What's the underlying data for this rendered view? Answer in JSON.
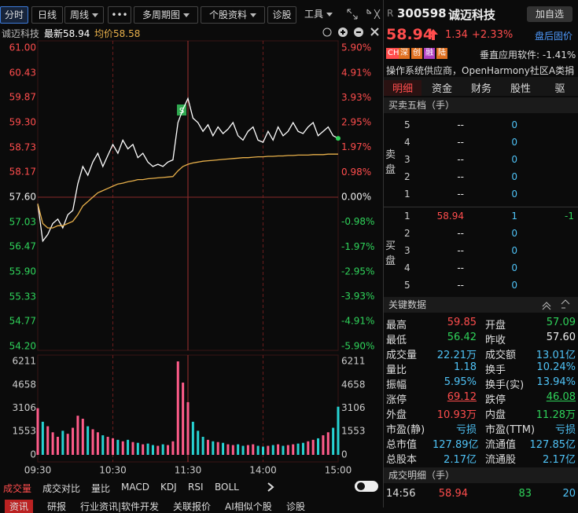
{
  "toolbar": {
    "buttons": [
      "分时",
      "日线",
      "周线",
      "•••",
      "多周期图",
      "个股资料",
      "诊股",
      "工具"
    ]
  },
  "stock_bar": {
    "name": "诚迈科技",
    "latest": "最新58.94",
    "avg": "均价58.58"
  },
  "chart_data": [
    {
      "type": "line",
      "x": [
        0,
        4,
        8,
        12,
        16,
        20,
        24,
        28,
        32,
        36,
        40,
        44,
        48,
        52,
        56,
        60,
        64,
        68,
        72,
        76,
        80,
        84,
        88,
        92,
        96,
        100,
        104,
        108,
        112,
        116,
        120,
        124,
        128,
        132,
        136,
        140,
        144,
        148,
        152,
        156,
        160,
        164,
        168,
        172,
        176,
        180,
        184,
        188,
        192,
        196,
        200,
        204,
        208,
        212,
        216,
        220,
        224,
        228,
        232,
        236,
        240
      ],
      "series": [
        {
          "color": "#ffffff",
          "values": [
            57.45,
            56.6,
            56.75,
            57.0,
            57.1,
            56.9,
            57.2,
            57.3,
            57.9,
            58.3,
            58.1,
            58.4,
            58.6,
            58.3,
            58.55,
            58.8,
            58.6,
            58.9,
            58.7,
            58.8,
            58.5,
            58.6,
            58.4,
            58.3,
            58.35,
            58.3,
            58.4,
            58.45,
            59.3,
            59.6,
            59.85,
            59.4,
            59.3,
            59.1,
            59.25,
            59.0,
            59.2,
            59.05,
            59.15,
            59.3,
            59.0,
            58.9,
            59.1,
            59.2,
            58.9,
            58.85,
            59.1,
            58.9,
            59.2,
            59.0,
            59.1,
            59.3,
            59.1,
            59.05,
            59.2,
            59.3,
            59.0,
            59.1,
            59.2,
            59.0,
            58.94
          ]
        },
        {
          "color": "#e8b04a",
          "values": [
            57.45,
            57.0,
            56.9,
            56.9,
            56.95,
            56.95,
            57.0,
            57.05,
            57.2,
            57.4,
            57.5,
            57.6,
            57.7,
            57.75,
            57.8,
            57.85,
            57.9,
            57.92,
            57.95,
            57.97,
            58.0,
            58.0,
            58.02,
            58.03,
            58.04,
            58.05,
            58.06,
            58.07,
            58.2,
            58.3,
            58.35,
            58.38,
            58.4,
            58.42,
            58.43,
            58.44,
            58.45,
            58.46,
            58.47,
            58.48,
            58.49,
            58.5,
            58.5,
            58.51,
            58.52,
            58.52,
            58.53,
            58.53,
            58.54,
            58.54,
            58.55,
            58.55,
            58.56,
            58.56,
            58.56,
            58.57,
            58.57,
            58.57,
            58.58,
            58.58,
            58.58
          ]
        }
      ],
      "xlim": [
        0,
        240
      ],
      "xticks": [
        {
          "value": 0,
          "label": "09:30"
        },
        {
          "value": 60,
          "label": "10:30"
        },
        {
          "value": 120,
          "label": "11:30"
        },
        {
          "value": 180,
          "label": "14:00"
        },
        {
          "value": 240,
          "label": "15:00"
        }
      ],
      "ylim": [
        54.2,
        61.0
      ],
      "yticks": [
        {
          "value": 61.0,
          "label": "61.00"
        },
        {
          "value": 60.43,
          "label": "60.43"
        },
        {
          "value": 59.87,
          "label": "59.87"
        },
        {
          "value": 59.3,
          "label": "59.30"
        },
        {
          "value": 58.73,
          "label": "58.73"
        },
        {
          "value": 58.17,
          "label": "58.17"
        },
        {
          "value": 57.6,
          "label": "57.60"
        },
        {
          "value": 57.03,
          "label": "57.03"
        },
        {
          "value": 56.47,
          "label": "56.47"
        },
        {
          "value": 55.9,
          "label": "55.90"
        },
        {
          "value": 55.33,
          "label": "55.33"
        },
        {
          "value": 54.77,
          "label": "54.77"
        },
        {
          "value": 54.2,
          "label": "54.20"
        }
      ],
      "y2lim": [
        -5.9,
        5.9
      ],
      "y2ticks": [
        {
          "value": 5.9,
          "label": "5.90%"
        },
        {
          "value": 4.91,
          "label": "4.91%"
        },
        {
          "value": 3.93,
          "label": "3.93%"
        },
        {
          "value": 2.95,
          "label": "2.95%"
        },
        {
          "value": 1.97,
          "label": "1.97%"
        },
        {
          "value": 0.98,
          "label": "0.98%"
        },
        {
          "value": 0,
          "label": "0.00%"
        },
        {
          "value": -0.98,
          "label": "-0.98%"
        },
        {
          "value": -1.97,
          "label": "-1.97%"
        },
        {
          "value": -2.95,
          "label": "-2.95%"
        },
        {
          "value": -3.93,
          "label": "-3.93%"
        },
        {
          "value": -4.91,
          "label": "-4.91%"
        },
        {
          "value": -5.9,
          "label": "-5.90%"
        }
      ],
      "annotations": [
        "S"
      ]
    },
    {
      "type": "bar",
      "up_color": "#ff5c8a",
      "down_color": "#27d3d3",
      "x": [
        0,
        4,
        8,
        12,
        16,
        20,
        24,
        28,
        32,
        36,
        40,
        44,
        48,
        52,
        56,
        60,
        64,
        68,
        72,
        76,
        80,
        84,
        88,
        92,
        96,
        100,
        104,
        108,
        112,
        116,
        120,
        124,
        128,
        132,
        136,
        140,
        144,
        148,
        152,
        156,
        160,
        164,
        168,
        172,
        176,
        180,
        184,
        188,
        192,
        196,
        200,
        204,
        208,
        212,
        216,
        220,
        224,
        228,
        232,
        236,
        240
      ],
      "values": [
        3100,
        2200,
        1900,
        1500,
        1200,
        1600,
        1400,
        1800,
        2600,
        2400,
        1900,
        1700,
        1500,
        1300,
        1200,
        1100,
        1000,
        900,
        1000,
        850,
        800,
        700,
        750,
        650,
        600,
        700,
        650,
        900,
        6211,
        4800,
        3500,
        2200,
        1600,
        1200,
        1000,
        900,
        850,
        800,
        700,
        650,
        700,
        600,
        650,
        700,
        600,
        550,
        600,
        650,
        700,
        600,
        650,
        700,
        750,
        800,
        900,
        1000,
        1100,
        1300,
        1500,
        1800,
        3200
      ],
      "ylim": [
        0,
        6211
      ],
      "yticks": [
        6211,
        4658,
        3106,
        1553,
        0
      ]
    }
  ],
  "indicator_tabs": [
    "成交量",
    "成交对比",
    "量比",
    "MACD",
    "KDJ",
    "RSI",
    "BOLL"
  ],
  "news_tabs": [
    "资讯",
    "研报",
    "行业资讯|软件开发",
    "关联报价",
    "AI相似个股",
    "诊股"
  ],
  "quote": {
    "r": "R",
    "code": "300598",
    "name": "诚迈科技",
    "add": "加自选",
    "price": "58.94",
    "change": "1.34",
    "pct": "+2.33%",
    "after": "盘后固价",
    "badges": [
      "CHM",
      "深",
      "创",
      "融",
      "陆"
    ],
    "sector": "垂直应用软件: -1.41%",
    "concept": "操作系统供应商，OpenHarmony社区A类捐..."
  },
  "tabs": [
    "明细",
    "资金",
    "财务",
    "股性",
    "驱"
  ],
  "order_book": {
    "title": "买卖五档（手）",
    "sell_label": "卖盘",
    "buy_label": "买盘",
    "sell": [
      [
        "5",
        "--",
        "0"
      ],
      [
        "4",
        "--",
        "0"
      ],
      [
        "3",
        "--",
        "0"
      ],
      [
        "2",
        "--",
        "0"
      ],
      [
        "1",
        "--",
        "0"
      ]
    ],
    "buy": [
      [
        "1",
        "58.94",
        "1",
        "-1"
      ],
      [
        "2",
        "--",
        "0"
      ],
      [
        "3",
        "--",
        "0"
      ],
      [
        "4",
        "--",
        "0"
      ],
      [
        "5",
        "--",
        "0"
      ]
    ]
  },
  "key_data": {
    "title": "关键数据",
    "rows": [
      [
        "最高",
        "59.85",
        "开盘",
        "57.09"
      ],
      [
        "最低",
        "56.42",
        "昨收",
        "57.60"
      ],
      [
        "成交量",
        "22.21万",
        "成交额",
        "13.01亿"
      ],
      [
        "量比",
        "1.18",
        "换手",
        "10.24%"
      ],
      [
        "振幅",
        "5.95%",
        "换手(实)",
        "13.94%"
      ],
      [
        "涨停",
        "69.12",
        "跌停",
        "46.08"
      ],
      [
        "外盘",
        "10.93万",
        "内盘",
        "11.28万"
      ],
      [
        "市盈(静)",
        "亏损",
        "市盈(TTM)",
        "亏损"
      ],
      [
        "总市值",
        "127.89亿",
        "流通值",
        "127.85亿"
      ],
      [
        "总股本",
        "2.17亿",
        "流通股",
        "2.17亿"
      ]
    ]
  },
  "trades": {
    "title": "成交明细（手）",
    "rows": [
      [
        "14:56",
        "58.94",
        "83",
        "20"
      ]
    ]
  }
}
